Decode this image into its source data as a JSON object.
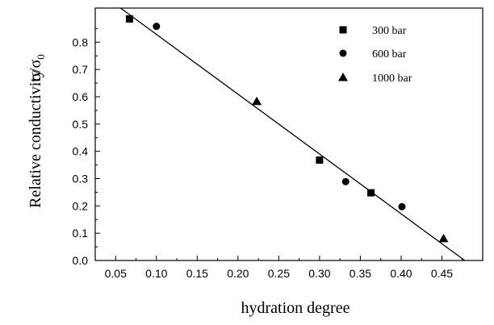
{
  "chart_data": {
    "type": "scatter",
    "title": "",
    "xlabel": "hydration degree",
    "ylabel": "Relative conductivity",
    "ylabel_symbol": {
      "base": "σ/σ",
      "sub": "0"
    },
    "xlim": [
      0.025,
      0.5
    ],
    "ylim": [
      0.0,
      0.925
    ],
    "x_ticks": [
      "0.05",
      "0.10",
      "0.15",
      "0.20",
      "0.25",
      "0.30",
      "0.35",
      "0.40",
      "0.45"
    ],
    "y_ticks": [
      "0.0",
      "0.1",
      "0.2",
      "0.3",
      "0.4",
      "0.5",
      "0.6",
      "0.7",
      "0.8"
    ],
    "grid": false,
    "legend_position": "top-right",
    "series": [
      {
        "name": "300 bar",
        "marker": "square",
        "points": [
          [
            0.067,
            0.885
          ],
          [
            0.3,
            0.368
          ],
          [
            0.363,
            0.248
          ]
        ]
      },
      {
        "name": "600 bar",
        "marker": "circle",
        "points": [
          [
            0.1,
            0.858
          ],
          [
            0.332,
            0.289
          ],
          [
            0.401,
            0.197
          ]
        ]
      },
      {
        "name": "1000 bar",
        "marker": "triangle",
        "points": [
          [
            0.223,
            0.583
          ],
          [
            0.452,
            0.08
          ]
        ]
      }
    ],
    "fit_line": {
      "x1": 0.056,
      "y1": 0.93,
      "x2": 0.478,
      "y2": 0.0
    }
  }
}
